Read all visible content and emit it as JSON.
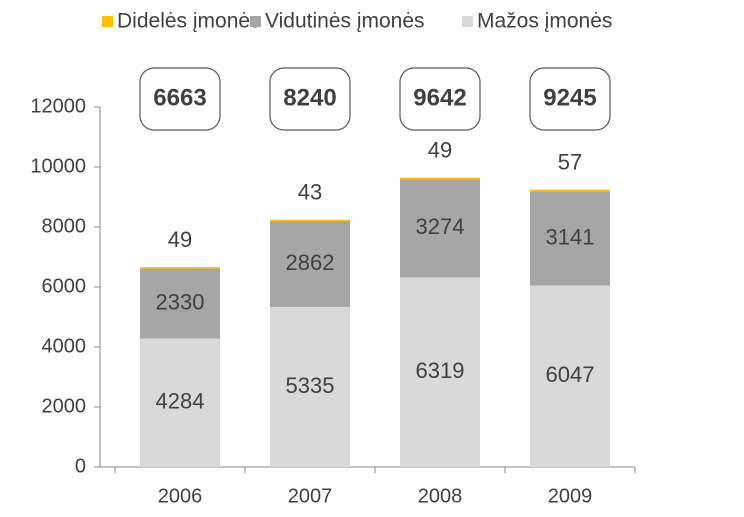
{
  "chart_data": {
    "type": "stacked_bar",
    "categories": [
      "2006",
      "2007",
      "2008",
      "2009"
    ],
    "series": [
      {
        "name": "Mažos įmonės",
        "color": "#d9d9d9",
        "values": [
          4284,
          5335,
          6319,
          6047
        ]
      },
      {
        "name": "Vidutinės įmonės",
        "color": "#a6a6a6",
        "values": [
          2330,
          2862,
          3274,
          3141
        ]
      },
      {
        "name": "Didelės įmonės",
        "color": "#ffc000",
        "values": [
          49,
          43,
          49,
          57
        ]
      }
    ],
    "totals": [
      6663,
      8240,
      9642,
      9245
    ],
    "ylim": [
      0,
      12000
    ],
    "yticks": [
      0,
      2000,
      4000,
      6000,
      8000,
      10000,
      12000
    ]
  }
}
